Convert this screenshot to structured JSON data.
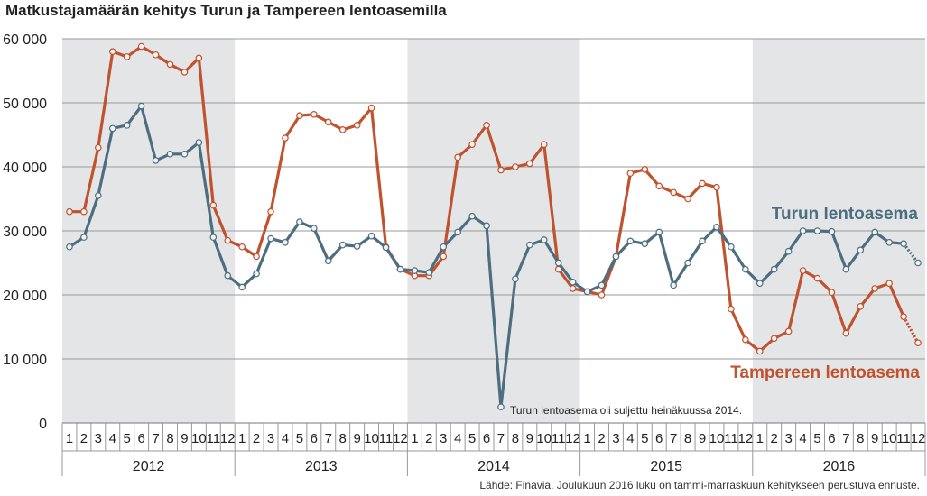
{
  "title": "Matkustajamäärän kehitys Turun ja Tampereen lentoasemilla",
  "source": "Lähde: Finavia. Joulukuun 2016 luku on tammi-marraskuun kehitykseen perustuva ennuste.",
  "chart_data": {
    "type": "line",
    "title": "Matkustajamäärän kehitys Turun ja Tampereen lentoasemilla",
    "ylim": [
      0,
      60000
    ],
    "yticks": [
      0,
      10000,
      20000,
      30000,
      40000,
      50000,
      60000
    ],
    "ytick_labels": [
      "0",
      "10 000",
      "20 000",
      "30 000",
      "40 000",
      "50 000",
      "60 000"
    ],
    "years": [
      "2012",
      "2013",
      "2014",
      "2015",
      "2016"
    ],
    "month_labels": [
      "1",
      "2",
      "3",
      "4",
      "5",
      "6",
      "7",
      "8",
      "9",
      "10",
      "11",
      "12"
    ],
    "grid": "horizontal",
    "alternating_year_shading": true,
    "forecast_last_point": true,
    "series": [
      {
        "name": "Tampereen lentoasema",
        "color": "#c0522e",
        "values": [
          33000,
          33000,
          43000,
          58000,
          57200,
          58800,
          57500,
          56000,
          54800,
          57000,
          34000,
          28500,
          27500,
          26000,
          33000,
          44500,
          48000,
          48200,
          47000,
          45800,
          46500,
          49200,
          27500,
          24000,
          23000,
          23000,
          26000,
          41500,
          43500,
          46500,
          39500,
          40000,
          40500,
          43500,
          24000,
          21000,
          20500,
          20000,
          26000,
          39000,
          39600,
          37000,
          36000,
          35000,
          37400,
          36800,
          17800,
          13000,
          11200,
          13200,
          14300,
          23800,
          22600,
          20400,
          14000,
          18200,
          21000,
          21800,
          16600,
          12500
        ]
      },
      {
        "name": "Turun lentoasema",
        "color": "#4d6e80",
        "values": [
          27500,
          29000,
          35500,
          46000,
          46500,
          49500,
          41000,
          42000,
          42000,
          43800,
          29000,
          23000,
          21200,
          23300,
          28800,
          28200,
          31400,
          30400,
          25300,
          27800,
          27600,
          29200,
          27400,
          24000,
          23800,
          23500,
          27500,
          29800,
          32300,
          30800,
          2500,
          22500,
          27800,
          28600,
          25000,
          22000,
          20500,
          21500,
          26000,
          28400,
          28000,
          29800,
          21500,
          25000,
          28400,
          30600,
          27500,
          24000,
          21800,
          24000,
          26800,
          30000,
          30000,
          29900,
          24000,
          27000,
          29800,
          28200,
          28000,
          25000
        ]
      }
    ],
    "annotations": [
      "Turun lentoasema oli suljettu heinäkuussa 2014."
    ]
  }
}
